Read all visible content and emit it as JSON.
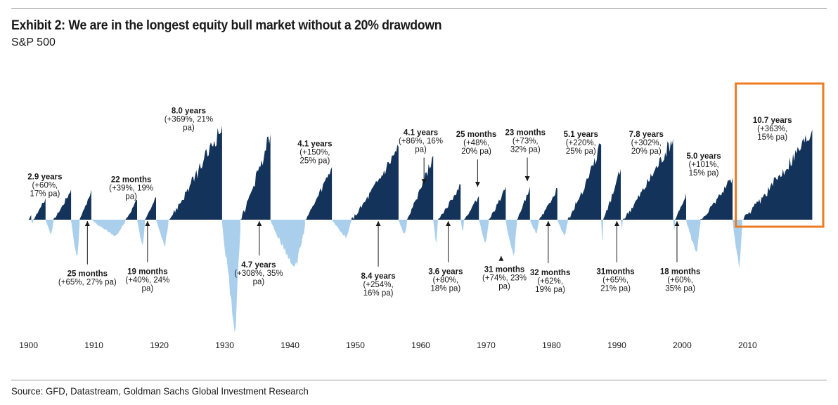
{
  "header": {
    "title": "Exhibit 2: We are in the longest equity bull market without a 20% drawdown",
    "subtitle": "S&P 500"
  },
  "footer": {
    "source": "Source: GFD, Datastream, Goldman Sachs Global Investment Research"
  },
  "colors": {
    "bull": "#13335a",
    "drawdown": "#a9cfec",
    "highlight": "#ee7b22"
  },
  "chart_data": {
    "type": "area",
    "title": "Exhibit 2: We are in the longest equity bull market without a 20% drawdown",
    "subtitle": "S&P 500",
    "x_ticks": [
      "1900",
      "1910",
      "1920",
      "1930",
      "1940",
      "1950",
      "1960",
      "1970",
      "1980",
      "1990",
      "2000",
      "2010"
    ],
    "xlim": [
      1899.5,
      2020.5
    ],
    "series": [
      {
        "kind": "bull",
        "segments": [
          [
            1900.0,
            1900.4,
            0.05
          ],
          [
            1900.7,
            1902.6,
            0.23
          ],
          [
            1903.8,
            1906.5,
            0.32
          ],
          [
            1907.8,
            1909.6,
            0.32
          ],
          [
            1914.8,
            1916.6,
            0.21
          ],
          [
            1917.8,
            1919.5,
            0.24
          ],
          [
            1921.4,
            1929.6,
            1.0
          ],
          [
            1932.4,
            1937.0,
            0.91
          ],
          [
            1942.3,
            1946.4,
            0.56
          ],
          [
            1949.4,
            1956.6,
            0.77
          ],
          [
            1957.9,
            1961.9,
            0.68
          ],
          [
            1962.6,
            1966.1,
            0.37
          ],
          [
            1966.6,
            1968.9,
            0.25
          ],
          [
            1970.4,
            1973.0,
            0.35
          ],
          [
            1974.7,
            1976.7,
            0.35
          ],
          [
            1978.1,
            1980.9,
            0.33
          ],
          [
            1982.5,
            1987.6,
            0.8
          ],
          [
            1987.9,
            1990.6,
            0.54
          ],
          [
            1990.9,
            1998.6,
            0.86
          ],
          [
            1998.9,
            2000.6,
            0.28
          ],
          [
            2002.8,
            2007.7,
            0.45
          ],
          [
            2009.2,
            2019.9,
            0.96
          ]
        ]
      },
      {
        "kind": "drawdown",
        "segments": [
          [
            1900.4,
            1900.7,
            0.04
          ],
          [
            1902.6,
            1903.8,
            0.14
          ],
          [
            1906.5,
            1907.8,
            0.37
          ],
          [
            1909.6,
            1914.8,
            0.15
          ],
          [
            1916.6,
            1917.8,
            0.24
          ],
          [
            1919.5,
            1921.4,
            0.24
          ],
          [
            1929.6,
            1932.4,
            1.0
          ],
          [
            1937.0,
            1942.3,
            0.45
          ],
          [
            1946.4,
            1949.4,
            0.16
          ],
          [
            1956.6,
            1957.9,
            0.14
          ],
          [
            1961.9,
            1962.6,
            0.23
          ],
          [
            1966.1,
            1966.6,
            0.12
          ],
          [
            1968.9,
            1970.4,
            0.23
          ],
          [
            1973.0,
            1974.7,
            0.36
          ],
          [
            1976.7,
            1978.1,
            0.13
          ],
          [
            1980.9,
            1982.5,
            0.16
          ],
          [
            1987.6,
            1987.9,
            0.22
          ],
          [
            1990.6,
            1990.9,
            0.09
          ],
          [
            1998.6,
            1998.9,
            0.1
          ],
          [
            2000.6,
            2002.8,
            0.31
          ],
          [
            2007.7,
            2009.2,
            0.44
          ]
        ]
      }
    ],
    "annotations": [
      {
        "above": true,
        "x": 1902.5,
        "y": 0.25,
        "lines": [
          "2.9 years",
          "(+60%,",
          "17% pa)"
        ]
      },
      {
        "above": true,
        "x": 1915.7,
        "y": 0.22,
        "lines": [
          "22 months",
          "(+39%, 19%",
          "pa)"
        ]
      },
      {
        "above": true,
        "x": 1924.5,
        "y": 0.95,
        "lines": [
          "8.0 years",
          "(+369%, 21%",
          "pa)"
        ]
      },
      {
        "above": true,
        "x": 1943.8,
        "y": 0.6,
        "lines": [
          "4.1  years",
          "(+150%,",
          "25% pa)"
        ]
      },
      {
        "above": true,
        "x": 1960.0,
        "y": 0.72,
        "arrow": [
          1960.5,
          0.38
        ],
        "lines": [
          "4.1 years",
          "(+86%, 16%",
          "pa)"
        ]
      },
      {
        "above": true,
        "x": 1968.5,
        "y": 0.7,
        "arrow": [
          1968.7,
          0.35
        ],
        "lines": [
          "25 months",
          "(+48%,",
          "20% pa)"
        ]
      },
      {
        "above": true,
        "x": 1976.0,
        "y": 0.72,
        "arrow": [
          1976.3,
          0.41
        ],
        "lines": [
          "23 months",
          "(+73%,",
          "32% pa)"
        ]
      },
      {
        "above": true,
        "x": 1984.5,
        "y": 0.7,
        "lines": [
          "5.1 years",
          "(+220%,",
          "25% pa)"
        ]
      },
      {
        "above": true,
        "x": 1994.5,
        "y": 0.7,
        "lines": [
          "7.8 years",
          "(+302%,",
          "20% pa)"
        ]
      },
      {
        "above": true,
        "x": 2003.3,
        "y": 0.47,
        "lines": [
          "5.0 years",
          "(+101%,",
          "15% pa)"
        ]
      },
      {
        "above": true,
        "x": 2013.8,
        "y": 0.85,
        "lines": [
          "10.7 years",
          "(+363%,",
          "15% pa)"
        ]
      },
      {
        "above": false,
        "x": 1909.0,
        "y": 0.45,
        "arrow": [
          1909.0,
          0.0
        ],
        "lines": [
          "25 months",
          "(+65%, 27% pa)"
        ]
      },
      {
        "above": false,
        "x": 1918.2,
        "y": 0.43,
        "arrow": [
          1918.2,
          0.0
        ],
        "lines": [
          "19 months",
          "(+40%, 24%",
          "pa)"
        ]
      },
      {
        "above": false,
        "x": 1935.2,
        "y": 0.37,
        "arrow": [
          1935.3,
          0.0
        ],
        "lines": [
          "4.7 years",
          "(+308%, 35%",
          "pa)"
        ]
      },
      {
        "above": false,
        "x": 1953.5,
        "y": 0.47,
        "arrow": [
          1953.5,
          0.0
        ],
        "lines": [
          "8.4 years",
          "(+254%,",
          "16% pa)"
        ]
      },
      {
        "above": false,
        "x": 1963.8,
        "y": 0.43,
        "arrow": [
          1964.2,
          0.0
        ],
        "lines": [
          "3.6 years",
          "(+80%,",
          "18% pa)"
        ]
      },
      {
        "above": false,
        "x": 1972.8,
        "y": 0.41,
        "arrow": [
          1972.3,
          0.33
        ],
        "lines": [
          "31 months",
          "(+74%, 23%",
          "pa)"
        ]
      },
      {
        "above": false,
        "x": 1979.8,
        "y": 0.44,
        "arrow": [
          1979.5,
          0.0
        ],
        "lines": [
          "32 months",
          "(+62%,",
          "19% pa)"
        ]
      },
      {
        "above": false,
        "x": 1989.8,
        "y": 0.43,
        "arrow": [
          1990.0,
          0.0
        ],
        "lines": [
          "31months",
          "(+65%,",
          "21% pa)"
        ]
      },
      {
        "above": false,
        "x": 1999.7,
        "y": 0.43,
        "arrow": [
          1999.2,
          0.0
        ],
        "lines": [
          "18 months",
          "(+60%,",
          "35% pa)"
        ]
      }
    ],
    "highlight": {
      "x0": 2008.2,
      "x1": 2020.5
    }
  }
}
